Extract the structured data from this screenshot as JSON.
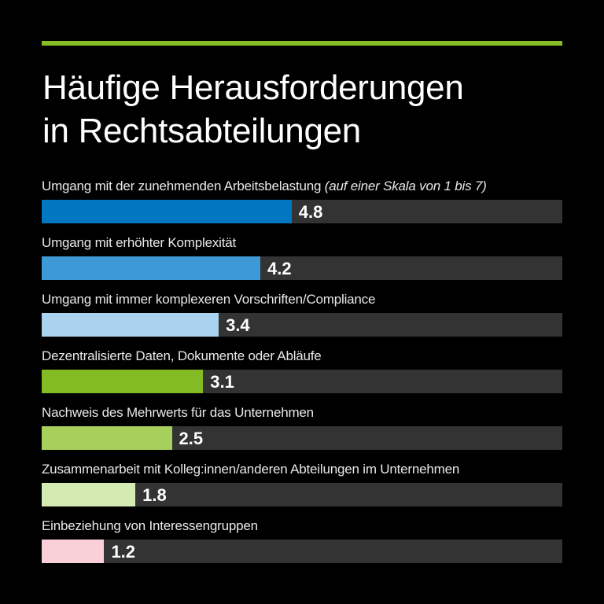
{
  "accent": "#86bc25",
  "title_lines": [
    "Häufige Herausforderungen",
    "in Rechtsabteilungen"
  ],
  "chart_data": {
    "type": "bar",
    "orientation": "horizontal",
    "title": "Häufige Herausforderungen in Rechtsabteilungen",
    "note": "(auf einer Skala von 1 bis 7)",
    "xlim": [
      0,
      10
    ],
    "grid": false,
    "categories": [
      "Umgang mit der zunehmenden Arbeitsbelastung",
      "Umgang mit erhöhter Komplexität",
      "Umgang mit immer komplexeren Vorschriften/Compliance",
      "Dezentralisierte Daten, Dokumente oder Abläufe",
      "Nachweis des Mehrwerts für das Unternehmen",
      "Zusammenarbeit mit Kolleg:innen/anderen Abteilungen im Unternehmen",
      "Einbeziehung von Interessengruppen"
    ],
    "values": [
      4.8,
      4.2,
      3.4,
      3.1,
      2.5,
      1.8,
      1.2
    ],
    "value_labels": [
      "4.8",
      "4.2",
      "3.4",
      "3.1",
      "2.5",
      "1.8",
      "1.2"
    ],
    "colors": [
      "#0077c0",
      "#3d9ad6",
      "#a9d3ef",
      "#82bc22",
      "#a6cf5c",
      "#d5e9b2",
      "#f9d0d8"
    ],
    "track_color": "#333333"
  }
}
